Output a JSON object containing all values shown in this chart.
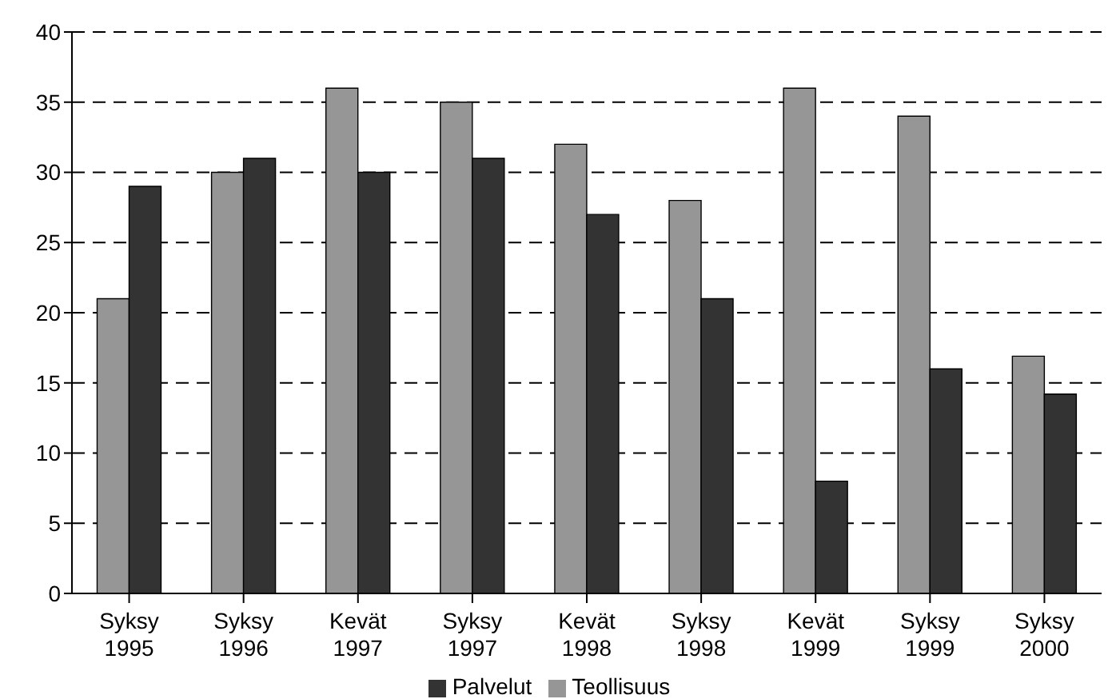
{
  "chart_data": {
    "type": "bar",
    "categories": [
      "Syksy\n1995",
      "Syksy\n1996",
      "Kevät\n1997",
      "Syksy\n1997",
      "Kevät\n1998",
      "Syksy\n1998",
      "Kevät\n1999",
      "Syksy\n1999",
      "Syksy\n2000"
    ],
    "series": [
      {
        "name": "Teollisuus",
        "color": "#969696",
        "values": [
          21,
          30,
          36,
          35,
          32,
          28,
          36,
          34,
          16.9
        ]
      },
      {
        "name": "Palvelut",
        "color": "#333333",
        "values": [
          29,
          31,
          30,
          31,
          27,
          21,
          8,
          16,
          14.2
        ]
      }
    ],
    "ylim": [
      0,
      40
    ],
    "yticks": [
      0,
      5,
      10,
      15,
      20,
      25,
      30,
      35,
      40
    ],
    "grid": "y",
    "line_style": "dashed",
    "legend": "bottom"
  }
}
